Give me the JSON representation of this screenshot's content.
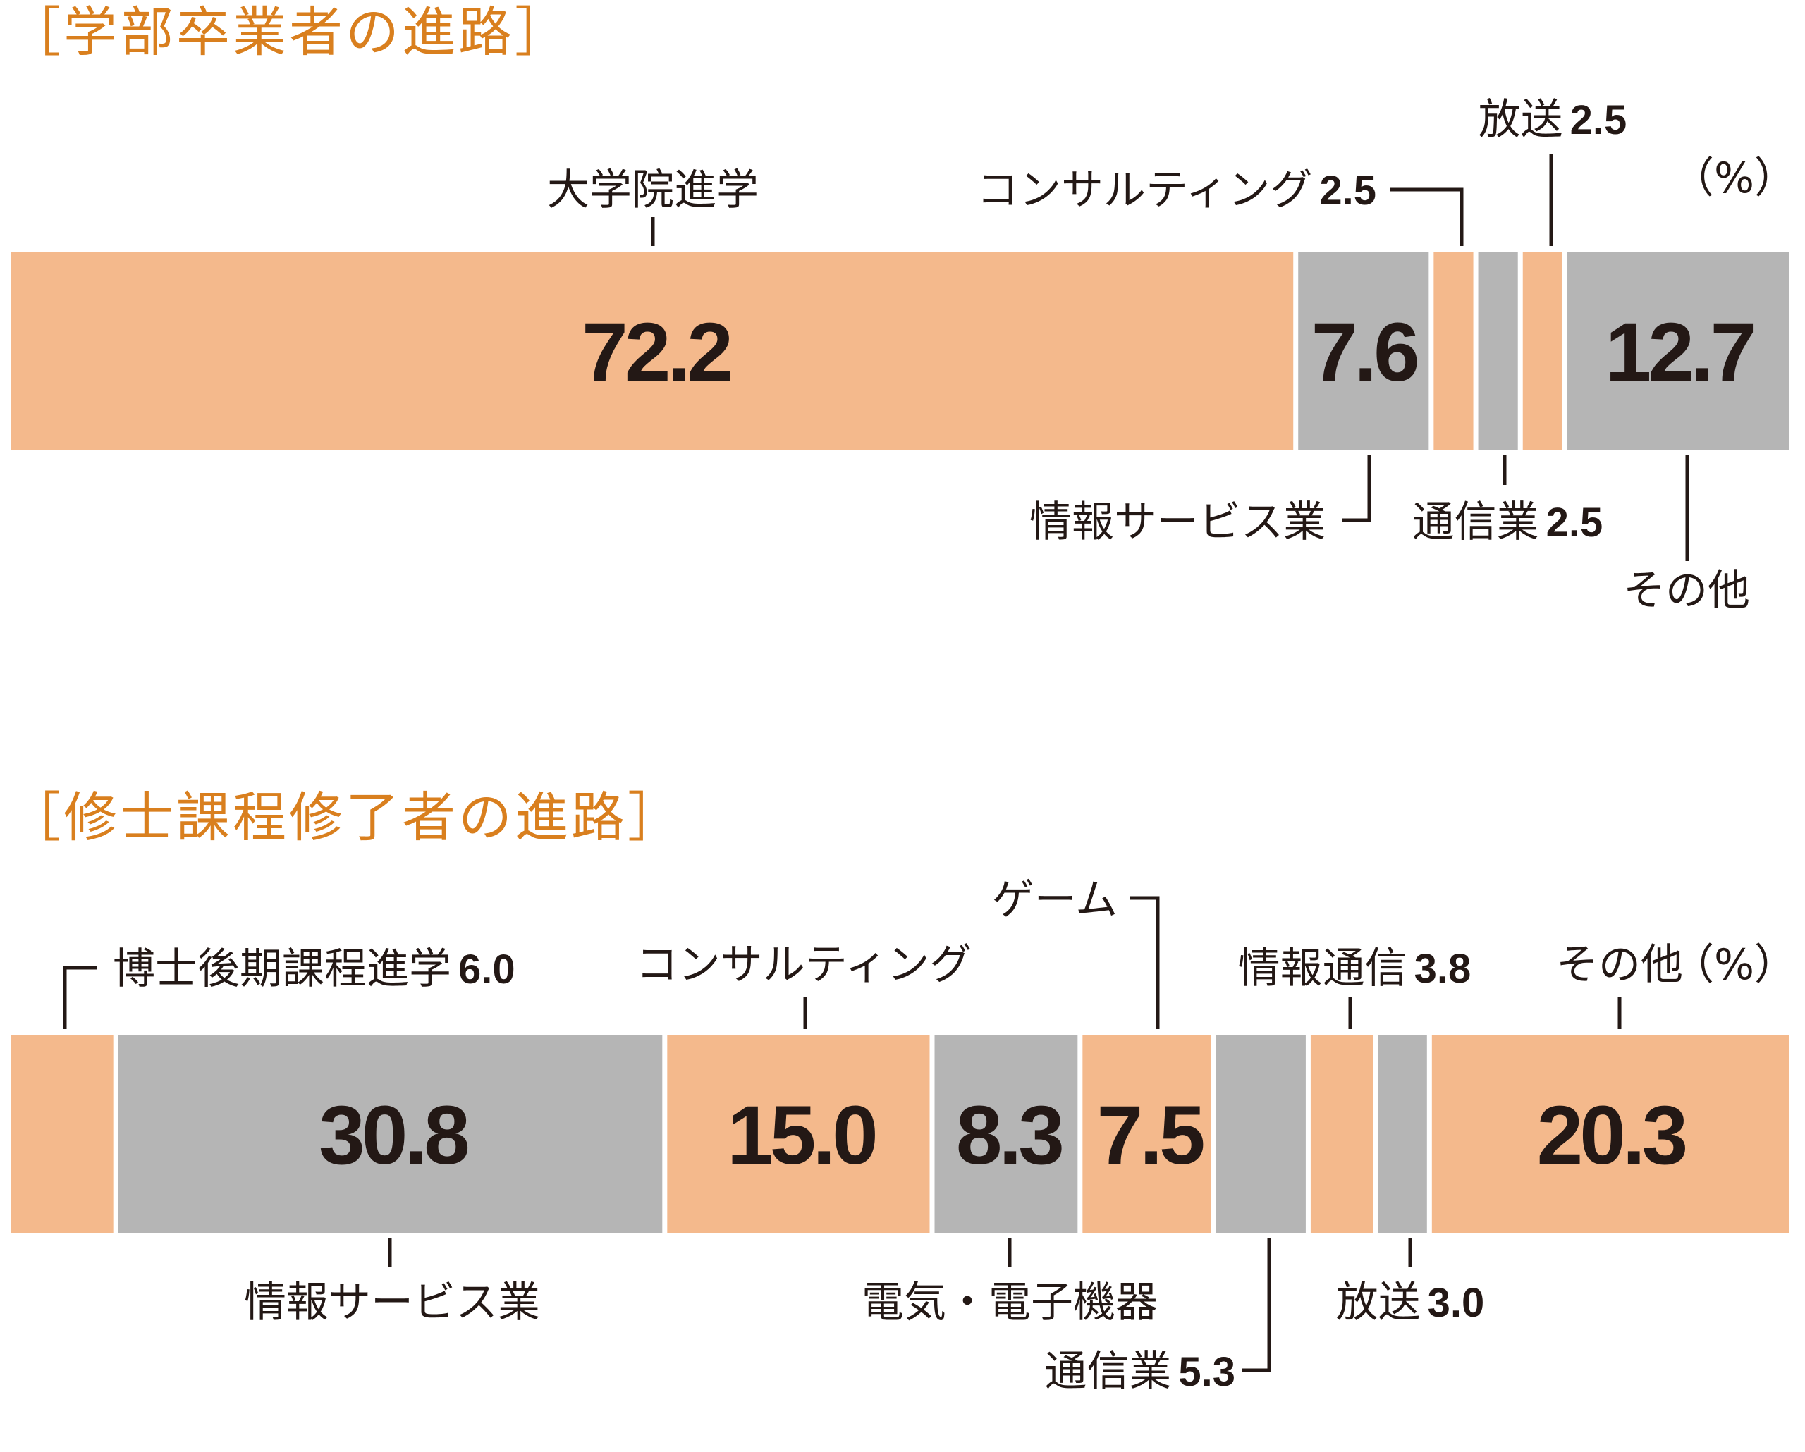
{
  "colors": {
    "accent": "#d97f1e",
    "orange": "#f4b98c",
    "gray": "#b5b5b5",
    "text": "#231815"
  },
  "chart_data": [
    {
      "type": "bar",
      "stacked": true,
      "orientation": "horizontal",
      "title": "［学部卒業者の進路］",
      "unit": "（%）",
      "segments": [
        {
          "label": "大学院進学",
          "value": 72.2,
          "value_text": "72.2",
          "color": "orange"
        },
        {
          "label": "情報サービス業",
          "value": 7.6,
          "value_text": "7.6",
          "color": "gray"
        },
        {
          "label": "コンサルティング",
          "value": 2.5,
          "value_text": "2.5",
          "color": "orange"
        },
        {
          "label": "通信業",
          "value": 2.5,
          "value_text": "2.5",
          "color": "gray"
        },
        {
          "label": "放送",
          "value": 2.5,
          "value_text": "2.5",
          "color": "orange"
        },
        {
          "label": "その他",
          "value": 12.7,
          "value_text": "12.7",
          "color": "gray"
        }
      ]
    },
    {
      "type": "bar",
      "stacked": true,
      "orientation": "horizontal",
      "title": "［修士課程修了者の進路］",
      "unit": "（%）",
      "segments": [
        {
          "label": "博士後期課程進学",
          "value": 6.0,
          "value_text": "6.0",
          "color": "orange"
        },
        {
          "label": "情報サービス業",
          "value": 30.8,
          "value_text": "30.8",
          "color": "gray"
        },
        {
          "label": "コンサルティング",
          "value": 15.0,
          "value_text": "15.0",
          "color": "orange"
        },
        {
          "label": "電気・電子機器",
          "value": 8.3,
          "value_text": "8.3",
          "color": "gray"
        },
        {
          "label": "ゲーム",
          "value": 7.5,
          "value_text": "7.5",
          "color": "orange"
        },
        {
          "label": "通信業",
          "value": 5.3,
          "value_text": "5.3",
          "color": "gray"
        },
        {
          "label": "情報通信",
          "value": 3.8,
          "value_text": "3.8",
          "color": "orange"
        },
        {
          "label": "放送",
          "value": 3.0,
          "value_text": "3.0",
          "color": "gray"
        },
        {
          "label": "その他",
          "value": 20.3,
          "value_text": "20.3",
          "color": "orange"
        }
      ]
    }
  ]
}
